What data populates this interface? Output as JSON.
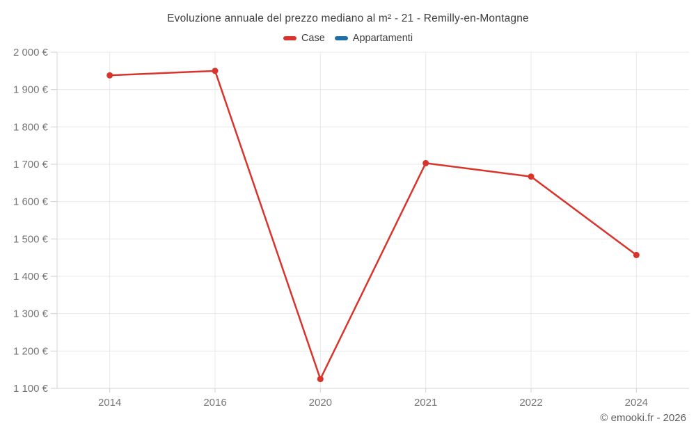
{
  "title": "Evoluzione annuale del prezzo mediano al m² - 21 - Remilly-en-Montagne",
  "footer": "© emooki.fr - 2026",
  "legend": [
    {
      "label": "Case",
      "color": "#d9342b"
    },
    {
      "label": "Appartamenti",
      "color": "#1d6fa5"
    }
  ],
  "colors": {
    "gridline": "#e8e8e8",
    "axis_line": "#d6d6d6",
    "tick": "#cfcfcf",
    "axis_label": "#767676",
    "title_text": "#3e3e3e",
    "footer_text": "#5c5c5c",
    "background": "#ffffff"
  },
  "chart_data": {
    "type": "line",
    "title": "Evoluzione annuale del prezzo mediano al m² - 21 - Remilly-en-Montagne",
    "categories": [
      "2014",
      "2016",
      "2020",
      "2021",
      "2022",
      "2024"
    ],
    "series": [
      {
        "name": "Case",
        "color": "#d9342b",
        "values": [
          1938,
          1950,
          1125,
          1703,
          1667,
          1457
        ]
      },
      {
        "name": "Appartamenti",
        "color": "#1d6fa5",
        "values": []
      }
    ],
    "xlabel": "",
    "ylabel": "",
    "ylim": [
      1100,
      2000
    ],
    "ytick_step": 100,
    "ytick_suffix": " €",
    "grid": true,
    "legend_position": "top",
    "marker_radius": 4.5,
    "line_width": 2.5
  }
}
